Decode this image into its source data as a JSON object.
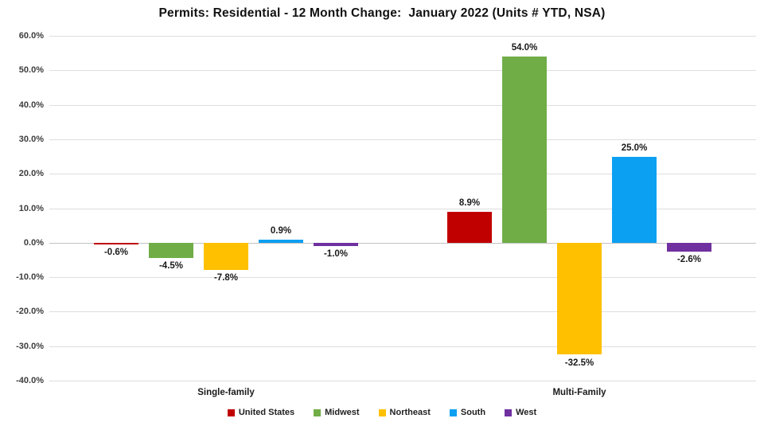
{
  "chart_data": {
    "type": "bar",
    "title": "Permits: Residential - 12 Month Change:  January 2022 (Units # YTD, NSA)",
    "categories": [
      "Single-family",
      "Multi-Family"
    ],
    "series": [
      {
        "name": "United States",
        "color": "#C00000",
        "values": [
          -0.6,
          8.9
        ],
        "labels": [
          "-0.6%",
          "8.9%"
        ]
      },
      {
        "name": "Midwest",
        "color": "#70AD47",
        "values": [
          -4.5,
          54.0
        ],
        "labels": [
          "-4.5%",
          "54.0%"
        ]
      },
      {
        "name": "Northeast",
        "color": "#FFC000",
        "values": [
          -7.8,
          -32.5
        ],
        "labels": [
          "-7.8%",
          "-32.5%"
        ]
      },
      {
        "name": "South",
        "color": "#0BA0F2",
        "values": [
          0.9,
          25.0
        ],
        "labels": [
          "0.9%",
          "25.0%"
        ]
      },
      {
        "name": "West",
        "color": "#7030A0",
        "values": [
          -1.0,
          -2.6
        ],
        "labels": [
          "-1.0%",
          "-2.6%"
        ]
      }
    ],
    "ylim": [
      -40,
      60
    ],
    "y_ticks": [
      {
        "value": 60,
        "label": "60.0%"
      },
      {
        "value": 50,
        "label": "50.0%"
      },
      {
        "value": 40,
        "label": "40.0%"
      },
      {
        "value": 30,
        "label": "30.0%"
      },
      {
        "value": 20,
        "label": "20.0%"
      },
      {
        "value": 10,
        "label": "10.0%"
      },
      {
        "value": 0,
        "label": "0.0%"
      },
      {
        "value": -10,
        "label": "-10.0%"
      },
      {
        "value": -20,
        "label": "-20.0%"
      },
      {
        "value": -30,
        "label": "-30.0%"
      },
      {
        "value": -40,
        "label": "-40.0%"
      }
    ],
    "grid": true,
    "legend_position": "bottom"
  }
}
